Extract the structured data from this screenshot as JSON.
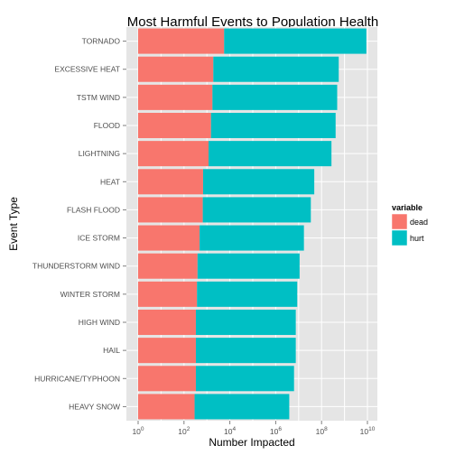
{
  "chart_data": {
    "type": "bar",
    "orientation": "horizontal",
    "stacked": true,
    "title": "Most Harmful Events to Population Health",
    "xlabel": "Number Impacted",
    "ylabel": "Event Type",
    "x_scale": "log10",
    "xlim": [
      1,
      10000000000
    ],
    "x_ticks": [
      {
        "value": 1,
        "base": "10",
        "exp": "0"
      },
      {
        "value": 100,
        "base": "10",
        "exp": "2"
      },
      {
        "value": 10000,
        "base": "10",
        "exp": "4"
      },
      {
        "value": 1000000,
        "base": "10",
        "exp": "6"
      },
      {
        "value": 100000000,
        "base": "10",
        "exp": "8"
      },
      {
        "value": 10000000000,
        "base": "10",
        "exp": "10"
      }
    ],
    "categories": [
      "TORNADO",
      "EXCESSIVE HEAT",
      "TSTM WIND",
      "FLOOD",
      "LIGHTNING",
      "HEAT",
      "FLASH FLOOD",
      "ICE STORM",
      "THUNDERSTORM WIND",
      "WINTER STORM",
      "HIGH WIND",
      "HAIL",
      "HURRICANE/TYPHOON",
      "HEAVY SNOW"
    ],
    "series": [
      {
        "name": "dead",
        "color": "#F8766D",
        "values": [
          5630,
          1900,
          1740,
          1510,
          1180,
          680,
          660,
          480,
          390,
          370,
          330,
          330,
          330,
          290
        ]
      },
      {
        "name": "hurt",
        "color": "#00BFC4",
        "values": [
          9000000000,
          560000000,
          480000000,
          410000000,
          270000000,
          48000000,
          34000000,
          17000000,
          11000000,
          8700000,
          7500000,
          7500000,
          6300000,
          3900000
        ]
      }
    ],
    "legend": {
      "title": "variable",
      "position": "right"
    },
    "grid": true,
    "panel_background": "#E5E5E5",
    "grid_color": "#FFFFFF"
  }
}
